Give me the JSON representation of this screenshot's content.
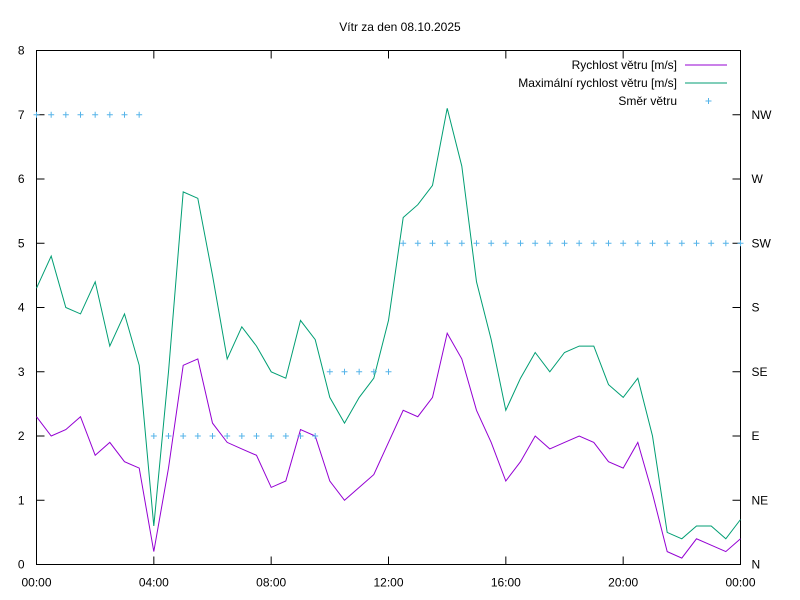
{
  "chart_data": {
    "type": "line",
    "title": "Vítr za den 08.10.2025",
    "xlabel": "",
    "ylabel": "",
    "x_ticks": [
      "00:00",
      "04:00",
      "08:00",
      "12:00",
      "16:00",
      "20:00",
      "00:00"
    ],
    "xlim_hours": [
      0,
      24
    ],
    "ylim": [
      0,
      8
    ],
    "y_ticks": [
      "0",
      "1",
      "2",
      "3",
      "4",
      "5",
      "6",
      "7",
      "8"
    ],
    "y2_ticks": [
      "N",
      "NE",
      "E",
      "SE",
      "S",
      "SW",
      "W",
      "NW"
    ],
    "legend_position": "top-right",
    "grid": false,
    "x_hours": [
      0,
      0.5,
      1,
      1.5,
      2,
      2.5,
      3,
      3.5,
      4,
      4.5,
      5,
      5.5,
      6,
      6.5,
      7,
      7.5,
      8,
      8.5,
      9,
      9.5,
      10,
      10.5,
      11,
      11.5,
      12,
      12.5,
      13,
      13.5,
      14,
      14.5,
      15,
      15.5,
      16,
      16.5,
      17,
      17.5,
      18,
      18.5,
      19,
      19.5,
      20,
      20.5,
      21,
      21.5,
      22,
      22.5,
      23,
      23.5,
      24
    ],
    "series": [
      {
        "name": "Rychlost větru [m/s]",
        "color": "#9400d3",
        "values": [
          2.3,
          2.0,
          2.1,
          2.3,
          1.7,
          1.9,
          1.6,
          1.5,
          0.2,
          1.5,
          3.1,
          3.2,
          2.2,
          1.9,
          1.8,
          1.7,
          1.2,
          1.3,
          2.1,
          2.0,
          1.3,
          1.0,
          1.2,
          1.4,
          1.9,
          2.4,
          2.3,
          2.6,
          3.6,
          3.2,
          2.4,
          1.9,
          1.3,
          1.6,
          2.0,
          1.8,
          1.9,
          2.0,
          1.9,
          1.6,
          1.5,
          1.9,
          1.1,
          0.2,
          0.1,
          0.4,
          0.3,
          0.2,
          0.4
        ]
      },
      {
        "name": "Maximální rychlost větru [m/s]",
        "color": "#009e73",
        "values": [
          4.3,
          4.8,
          4.0,
          3.9,
          4.4,
          3.4,
          3.9,
          3.1,
          0.6,
          3.0,
          5.8,
          5.7,
          4.5,
          3.2,
          3.7,
          3.4,
          3.0,
          2.9,
          3.8,
          3.5,
          2.6,
          2.2,
          2.6,
          2.9,
          3.8,
          5.4,
          5.6,
          5.9,
          7.1,
          6.2,
          4.4,
          3.5,
          2.4,
          2.9,
          3.3,
          3.0,
          3.3,
          3.4,
          3.4,
          2.8,
          2.6,
          2.9,
          2.0,
          0.5,
          0.4,
          0.6,
          0.6,
          0.4,
          0.7
        ]
      },
      {
        "name": "Směr větru",
        "color": "#56b4e9",
        "style": "points",
        "values": [
          7,
          7,
          7,
          7,
          7,
          7,
          7,
          7,
          2,
          2,
          2,
          2,
          2,
          2,
          2,
          2,
          2,
          2,
          2,
          2,
          3,
          3,
          3,
          3,
          3,
          5,
          5,
          5,
          5,
          5,
          5,
          5,
          5,
          5,
          5,
          5,
          5,
          5,
          5,
          5,
          5,
          5,
          5,
          5,
          5,
          5,
          5,
          5,
          5
        ]
      }
    ]
  }
}
